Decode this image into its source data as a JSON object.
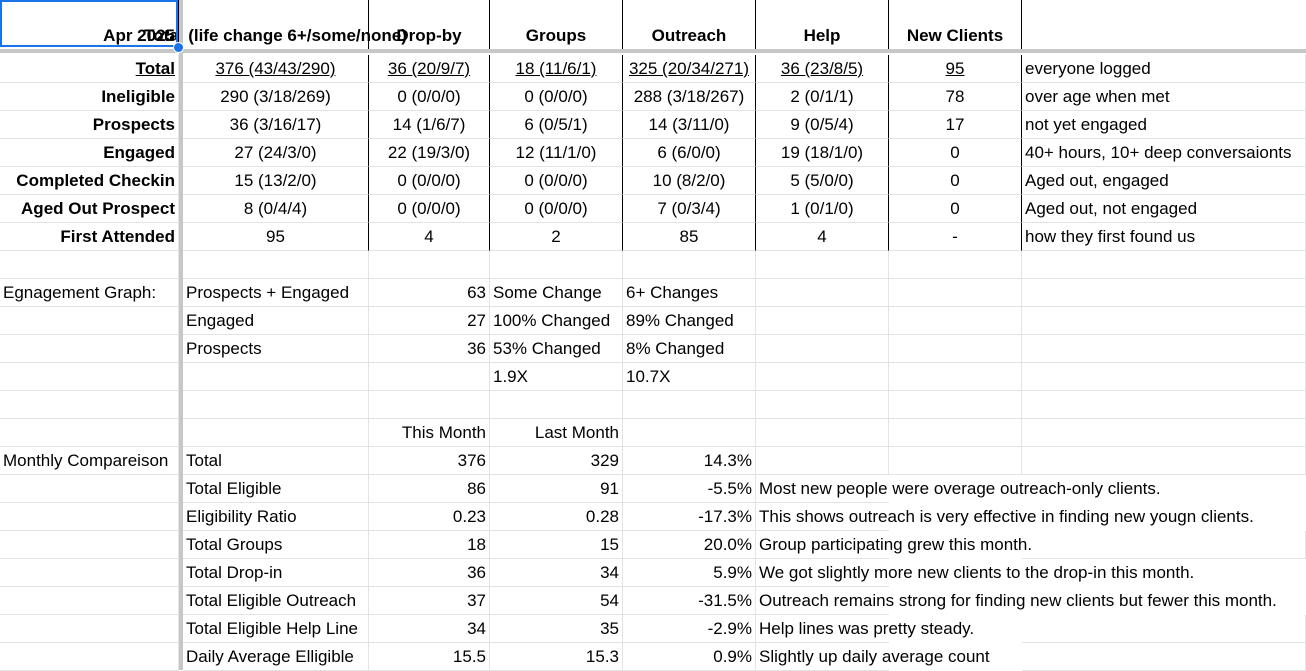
{
  "header": {
    "corner_label": "Apr 2025",
    "columns": [
      "Total (life change 6+/some/none)",
      "Drop-by",
      "Groups",
      "Outreach",
      "Help",
      "New Clients",
      ""
    ]
  },
  "summary_rows": [
    {
      "label": "Total",
      "values": [
        "376 (43/43/290)",
        "36 (20/9/7)",
        "18 (11/6/1)",
        "325 (20/34/271)",
        "36 (23/8/5)",
        "95",
        "everyone logged"
      ]
    },
    {
      "label": "Ineligible",
      "values": [
        "290 (3/18/269)",
        "0 (0/0/0)",
        "0 (0/0/0)",
        "288 (3/18/267)",
        "2 (0/1/1)",
        "78",
        "over age when met"
      ]
    },
    {
      "label": "Prospects",
      "values": [
        "36 (3/16/17)",
        "14 (1/6/7)",
        "6 (0/5/1)",
        "14 (3/11/0)",
        "9 (0/5/4)",
        "17",
        "not yet engaged"
      ]
    },
    {
      "label": "Engaged",
      "values": [
        "27 (24/3/0)",
        "22 (19/3/0)",
        "12 (11/1/0)",
        "6 (6/0/0)",
        "19 (18/1/0)",
        "0",
        "40+ hours, 10+ deep conversaionts"
      ]
    },
    {
      "label": "Completed Checkin",
      "values": [
        "15 (13/2/0)",
        "0 (0/0/0)",
        "0 (0/0/0)",
        "10 (8/2/0)",
        "5 (5/0/0)",
        "0",
        "Aged out, engaged"
      ]
    },
    {
      "label": "Aged Out Prospect",
      "values": [
        "8 (0/4/4)",
        "0 (0/0/0)",
        "0 (0/0/0)",
        "7 (0/3/4)",
        "1 (0/1/0)",
        "0",
        "Aged out, not engaged"
      ]
    },
    {
      "label": "First Attended",
      "values": [
        "95",
        "4",
        "2",
        "85",
        "4",
        "-",
        "how they first found us"
      ]
    }
  ],
  "engagement": {
    "label": "Egnagement Graph:",
    "rows": [
      {
        "name": "Prospects + Engaged",
        "value": "63",
        "col3": "Some Change",
        "col4": "6+ Changes"
      },
      {
        "name": "Engaged",
        "value": "27",
        "col3": "100% Changed",
        "col4": "89% Changed"
      },
      {
        "name": "Prospects",
        "value": "36",
        "col3": "53% Changed",
        "col4": "8% Changed"
      },
      {
        "name": "",
        "value": "",
        "col3": "1.9X",
        "col4": "10.7X"
      }
    ]
  },
  "monthly": {
    "label": "Monthly Compareison",
    "col_this": "This Month",
    "col_last": "Last Month",
    "rows": [
      {
        "name": "Total",
        "this": "376",
        "last": "329",
        "pct": "14.3%",
        "note": ""
      },
      {
        "name": "Total Eligible",
        "this": "86",
        "last": "91",
        "pct": "-5.5%",
        "note": "Most new people were overage outreach-only clients."
      },
      {
        "name": "Eligibility Ratio",
        "this": "0.23",
        "last": "0.28",
        "pct": "-17.3%",
        "note": "This shows outreach is very effective in finding new yougn clients."
      },
      {
        "name": "Total Groups",
        "this": "18",
        "last": "15",
        "pct": "20.0%",
        "note": "Group participating grew this month."
      },
      {
        "name": "Total Drop-in",
        "this": "36",
        "last": "34",
        "pct": "5.9%",
        "note": "We got slightly more new clients to the drop-in this month."
      },
      {
        "name": "Total Eligible Outreach",
        "this": "37",
        "last": "54",
        "pct": "-31.5%",
        "note": "Outreach remains strong for finding new clients but fewer this month."
      },
      {
        "name": "Total Eligible Help Line",
        "this": "34",
        "last": "35",
        "pct": "-2.9%",
        "note": "Help lines was pretty steady."
      },
      {
        "name": "Daily Average Elligible",
        "this": "15.5",
        "last": "15.3",
        "pct": "0.9%",
        "note": "Slightly up daily average count"
      }
    ]
  }
}
